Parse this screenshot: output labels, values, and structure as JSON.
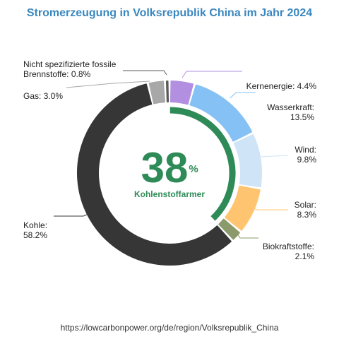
{
  "title": "Stromerzeugung in Volksrepublik China im Jahr 2024",
  "footer_url": "https://lowcarbonpower.org/de/region/Volksrepublik_China",
  "center": {
    "value": "38",
    "unit": "%",
    "label": "Kohlenstoffarmer",
    "color": "#2e8b57"
  },
  "chart_data": {
    "type": "donut",
    "title": "Stromerzeugung in Volksrepublik China im Jahr 2024",
    "unit": "%",
    "slices": [
      {
        "label_lines": [
          "Kernenergie: 4.4%"
        ],
        "value": 4.4,
        "color": "#b28fe0",
        "low_carbon": true
      },
      {
        "label_lines": [
          "Wasserkraft:",
          "13.5%"
        ],
        "value": 13.5,
        "color": "#85c1f5",
        "low_carbon": true
      },
      {
        "label_lines": [
          "Wind:",
          "9.8%"
        ],
        "value": 9.8,
        "color": "#cfe4f6",
        "low_carbon": true
      },
      {
        "label_lines": [
          "Solar:",
          "8.3%"
        ],
        "value": 8.3,
        "color": "#ffc470",
        "low_carbon": true
      },
      {
        "label_lines": [
          "Biokraftstoffe:",
          "2.1%"
        ],
        "value": 2.1,
        "color": "#8a9a6b",
        "low_carbon": true
      },
      {
        "label_lines": [
          "Kohle:",
          "58.2%"
        ],
        "value": 58.2,
        "color": "#363636",
        "low_carbon": false
      },
      {
        "label_lines": [
          "Gas: 3.0%"
        ],
        "value": 3.0,
        "color": "#a8a8a8",
        "low_carbon": false
      },
      {
        "label_lines": [
          "Nicht spezifizierte fossile",
          "Brennstoffe: 0.8%"
        ],
        "value": 0.8,
        "color": "#5a5a5a",
        "low_carbon": false
      }
    ],
    "low_carbon_share": 38,
    "low_carbon_color": "#2e8b57"
  }
}
